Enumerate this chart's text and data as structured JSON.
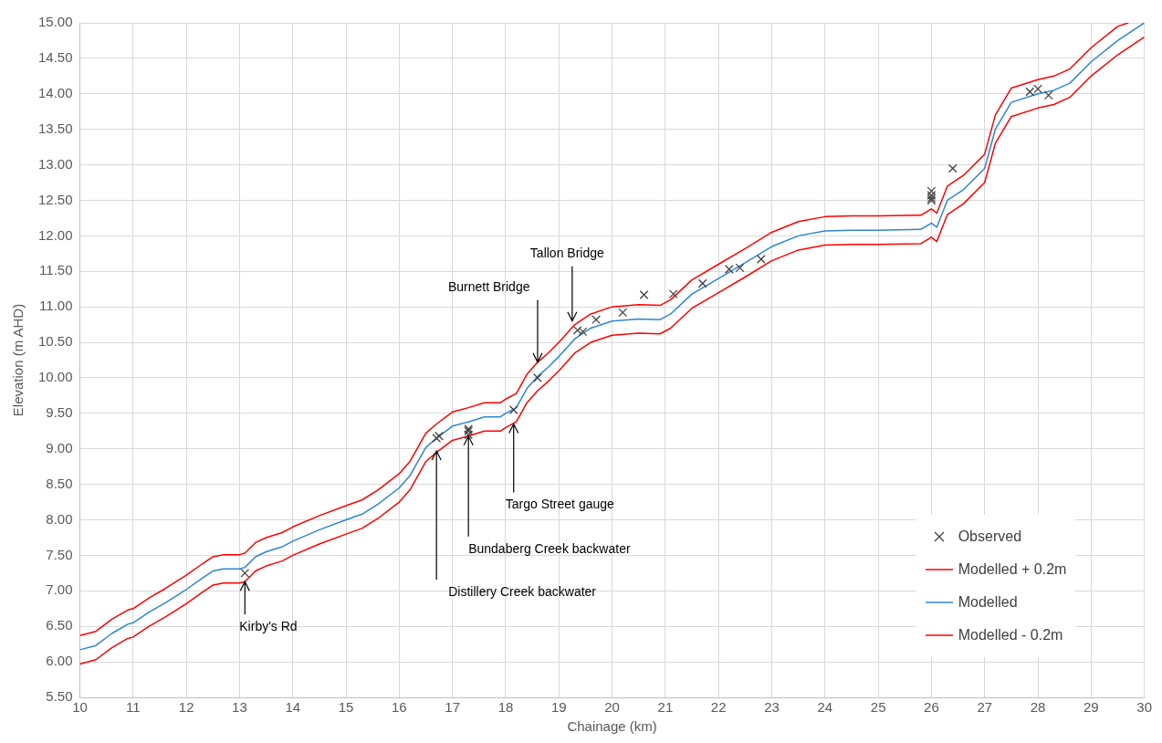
{
  "chart_data": {
    "type": "line",
    "xlabel": "Chainage (km)",
    "ylabel": "Elevation (m AHD)",
    "xlim": [
      10,
      30
    ],
    "xticks": [
      10,
      11,
      12,
      13,
      14,
      15,
      16,
      17,
      18,
      19,
      20,
      21,
      22,
      23,
      24,
      25,
      26,
      27,
      28,
      29,
      30
    ],
    "ylim": [
      5.5,
      15
    ],
    "yticks": [
      {
        "value": 5.5,
        "label": "5.50"
      },
      {
        "value": 6,
        "label": "6.00"
      },
      {
        "value": 6.5,
        "label": "6.50"
      },
      {
        "value": 7,
        "label": "7.00"
      },
      {
        "value": 7.5,
        "label": "7.50"
      },
      {
        "value": 8,
        "label": "8.00"
      },
      {
        "value": 8.5,
        "label": "8.50"
      },
      {
        "value": 9,
        "label": "9.00"
      },
      {
        "value": 9.5,
        "label": "9.50"
      },
      {
        "value": 10,
        "label": "10.00"
      },
      {
        "value": 10.5,
        "label": "10.50"
      },
      {
        "value": 11,
        "label": "11.00"
      },
      {
        "value": 11.5,
        "label": "11.50"
      },
      {
        "value": 12,
        "label": "12.00"
      },
      {
        "value": 12.5,
        "label": "12.50"
      },
      {
        "value": 13,
        "label": "13.00"
      },
      {
        "value": 13.5,
        "label": "13.50"
      },
      {
        "value": 14,
        "label": "14.00"
      },
      {
        "value": 14.5,
        "label": "14.50"
      },
      {
        "value": 15,
        "label": "15.00"
      }
    ],
    "grid": true,
    "legend": "bottom right",
    "series": [
      {
        "name": "Observed",
        "type": "scatter",
        "marker": "cross",
        "color": "#404040",
        "x": [
          13.1,
          16.7,
          16.75,
          17.3,
          17.3,
          17.3,
          18.15,
          18.6,
          19.35,
          19.45,
          19.7,
          20.2,
          20.6,
          21.15,
          21.7,
          22.2,
          22.4,
          22.8,
          26.0,
          26.0,
          26.0,
          26.0,
          26.4,
          27.85,
          28.0,
          28.2
        ],
        "values": [
          7.25,
          9.15,
          9.18,
          9.2,
          9.25,
          9.28,
          9.55,
          10.0,
          10.67,
          10.65,
          10.82,
          10.92,
          11.17,
          11.18,
          11.33,
          11.53,
          11.55,
          11.67,
          12.63,
          12.57,
          12.53,
          12.5,
          12.95,
          14.03,
          14.07,
          13.98
        ]
      },
      {
        "name": "Modelled + 0.2m",
        "marker": "none",
        "color": "#ff0000",
        "x": [
          10.0,
          10.3,
          10.6,
          10.9,
          11.0,
          11.3,
          11.6,
          12.0,
          12.3,
          12.5,
          12.7,
          13.0,
          13.1,
          13.3,
          13.5,
          13.8,
          14.0,
          14.5,
          15.0,
          15.3,
          15.6,
          16.0,
          16.2,
          16.5,
          16.7,
          17.0,
          17.3,
          17.6,
          17.9,
          18.0,
          18.2,
          18.4,
          18.6,
          18.8,
          19.0,
          19.3,
          19.6,
          20.0,
          20.5,
          20.9,
          21.1,
          21.5,
          22.0,
          22.5,
          23.0,
          23.5,
          24.0,
          24.5,
          25.0,
          25.8,
          26.0,
          26.1,
          26.3,
          26.6,
          27.0,
          27.2,
          27.5,
          28.0,
          28.3,
          28.6,
          29.0,
          29.5,
          29.7
        ],
        "values": [
          6.37,
          6.43,
          6.6,
          6.73,
          6.75,
          6.9,
          7.03,
          7.22,
          7.38,
          7.48,
          7.51,
          7.51,
          7.53,
          7.68,
          7.75,
          7.82,
          7.9,
          8.06,
          8.2,
          8.28,
          8.42,
          8.65,
          8.82,
          9.22,
          9.35,
          9.52,
          9.58,
          9.65,
          9.65,
          9.7,
          9.78,
          10.05,
          10.22,
          10.35,
          10.5,
          10.75,
          10.9,
          11.0,
          11.03,
          11.02,
          11.1,
          11.38,
          11.6,
          11.82,
          12.05,
          12.2,
          12.27,
          12.28,
          12.28,
          12.29,
          12.38,
          12.32,
          12.7,
          12.85,
          13.15,
          13.7,
          14.08,
          14.2,
          14.25,
          14.35,
          14.65,
          14.95,
          15.0
        ]
      },
      {
        "name": "Modelled",
        "marker": "none",
        "color": "#2e86d1",
        "x": [
          10.0,
          10.3,
          10.6,
          10.9,
          11.0,
          11.3,
          11.6,
          12.0,
          12.3,
          12.5,
          12.7,
          13.0,
          13.1,
          13.3,
          13.5,
          13.8,
          14.0,
          14.5,
          15.0,
          15.3,
          15.6,
          16.0,
          16.2,
          16.5,
          16.7,
          17.0,
          17.3,
          17.6,
          17.9,
          18.0,
          18.2,
          18.4,
          18.6,
          18.8,
          19.0,
          19.3,
          19.6,
          20.0,
          20.5,
          20.9,
          21.1,
          21.5,
          22.0,
          22.5,
          23.0,
          23.5,
          24.0,
          24.5,
          25.0,
          25.8,
          26.0,
          26.1,
          26.3,
          26.6,
          27.0,
          27.2,
          27.5,
          28.0,
          28.3,
          28.6,
          29.0,
          29.5,
          30.0
        ],
        "values": [
          6.17,
          6.23,
          6.4,
          6.53,
          6.55,
          6.7,
          6.83,
          7.02,
          7.18,
          7.28,
          7.31,
          7.31,
          7.33,
          7.48,
          7.55,
          7.62,
          7.7,
          7.86,
          8.0,
          8.08,
          8.22,
          8.45,
          8.62,
          9.02,
          9.15,
          9.32,
          9.38,
          9.45,
          9.45,
          9.5,
          9.58,
          9.85,
          10.02,
          10.15,
          10.3,
          10.55,
          10.7,
          10.8,
          10.83,
          10.82,
          10.9,
          11.18,
          11.4,
          11.62,
          11.85,
          12.0,
          12.07,
          12.08,
          12.08,
          12.09,
          12.18,
          12.12,
          12.5,
          12.65,
          12.95,
          13.5,
          13.88,
          14.0,
          14.05,
          14.15,
          14.45,
          14.75,
          15.0
        ]
      },
      {
        "name": "Modelled - 0.2m",
        "marker": "none",
        "color": "#ff0000",
        "x": [
          10.0,
          10.3,
          10.6,
          10.9,
          11.0,
          11.3,
          11.6,
          12.0,
          12.3,
          12.5,
          12.7,
          13.0,
          13.1,
          13.3,
          13.5,
          13.8,
          14.0,
          14.5,
          15.0,
          15.3,
          15.6,
          16.0,
          16.2,
          16.5,
          16.7,
          17.0,
          17.3,
          17.6,
          17.9,
          18.0,
          18.2,
          18.4,
          18.6,
          18.8,
          19.0,
          19.3,
          19.6,
          20.0,
          20.5,
          20.9,
          21.1,
          21.5,
          22.0,
          22.5,
          23.0,
          23.5,
          24.0,
          24.5,
          25.0,
          25.8,
          26.0,
          26.1,
          26.3,
          26.6,
          27.0,
          27.2,
          27.5,
          28.0,
          28.3,
          28.6,
          29.0,
          29.5,
          30.0
        ],
        "values": [
          5.97,
          6.03,
          6.2,
          6.33,
          6.35,
          6.5,
          6.63,
          6.82,
          6.98,
          7.08,
          7.11,
          7.11,
          7.13,
          7.28,
          7.35,
          7.42,
          7.5,
          7.66,
          7.8,
          7.88,
          8.02,
          8.25,
          8.42,
          8.82,
          8.95,
          9.12,
          9.18,
          9.25,
          9.25,
          9.3,
          9.38,
          9.65,
          9.82,
          9.95,
          10.1,
          10.35,
          10.5,
          10.6,
          10.63,
          10.62,
          10.7,
          10.98,
          11.2,
          11.42,
          11.65,
          11.8,
          11.87,
          11.88,
          11.88,
          11.89,
          11.98,
          11.92,
          12.3,
          12.45,
          12.75,
          13.3,
          13.68,
          13.8,
          13.85,
          13.95,
          14.25,
          14.55,
          14.8
        ]
      }
    ],
    "annotations": [
      {
        "text": "Kirby's Rd",
        "x": 13.1,
        "y": 7.13
      },
      {
        "text": "Distillery Creek backwater",
        "x": 16.7,
        "y": 8.97
      },
      {
        "text": "Bundaberg Creek backwater",
        "x": 17.3,
        "y": 9.18
      },
      {
        "text": "Targo Street gauge",
        "x": 18.15,
        "y": 9.35
      },
      {
        "text": "Burnett Bridge",
        "x": 18.6,
        "y": 10.22
      },
      {
        "text": "Tallon Bridge",
        "x": 19.25,
        "y": 10.8
      }
    ]
  }
}
